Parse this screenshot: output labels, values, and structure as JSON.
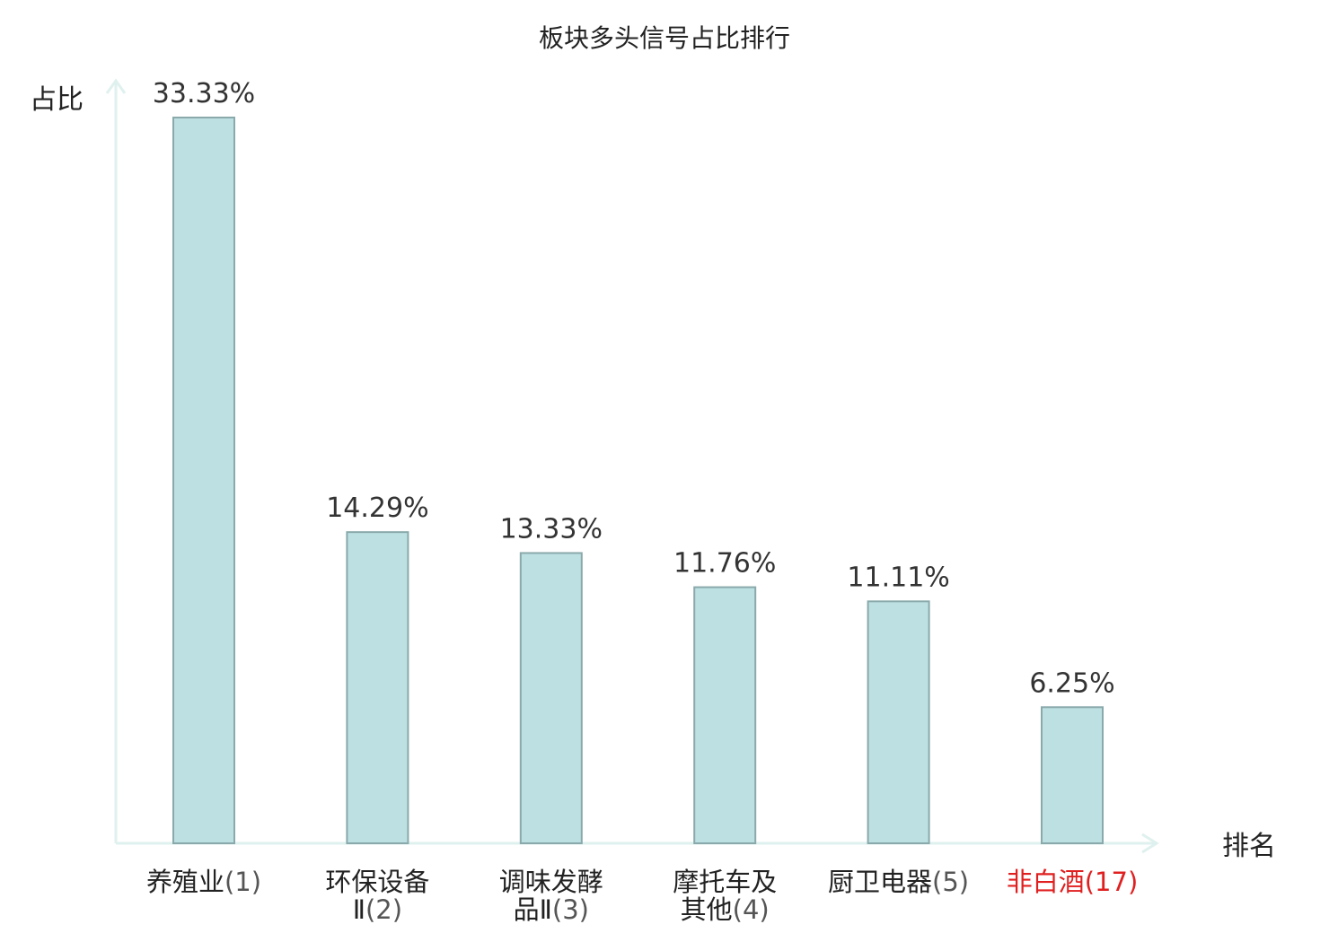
{
  "chart_data": {
    "type": "bar",
    "title": "板块多头信号占比排行",
    "ylabel": "占比",
    "xlabel": "排名",
    "ylim": [
      0,
      35.2
    ],
    "grid": false,
    "legend": "none",
    "bar_color": "#bde0e3",
    "bar_border_color": "#8aa9ab",
    "axis_color": "#dff1ee",
    "highlight_color": "#e02020",
    "categories": [
      {
        "name_lines": [
          "养殖业"
        ],
        "rank": "(1)",
        "highlight": false
      },
      {
        "name_lines": [
          "环保设备",
          "Ⅱ"
        ],
        "rank": "(2)",
        "highlight": false
      },
      {
        "name_lines": [
          "调味发酵",
          "品Ⅱ"
        ],
        "rank": "(3)",
        "highlight": false
      },
      {
        "name_lines": [
          "摩托车及",
          "其他"
        ],
        "rank": "(4)",
        "highlight": false
      },
      {
        "name_lines": [
          "厨卫电器"
        ],
        "rank": "(5)",
        "highlight": false
      },
      {
        "name_lines": [
          "非白酒"
        ],
        "rank": "(17)",
        "highlight": true
      }
    ],
    "values": [
      33.33,
      14.29,
      13.33,
      11.76,
      11.11,
      6.25
    ],
    "value_labels": [
      "33.33%",
      "14.29%",
      "13.33%",
      "11.76%",
      "11.11%",
      "6.25%"
    ]
  }
}
